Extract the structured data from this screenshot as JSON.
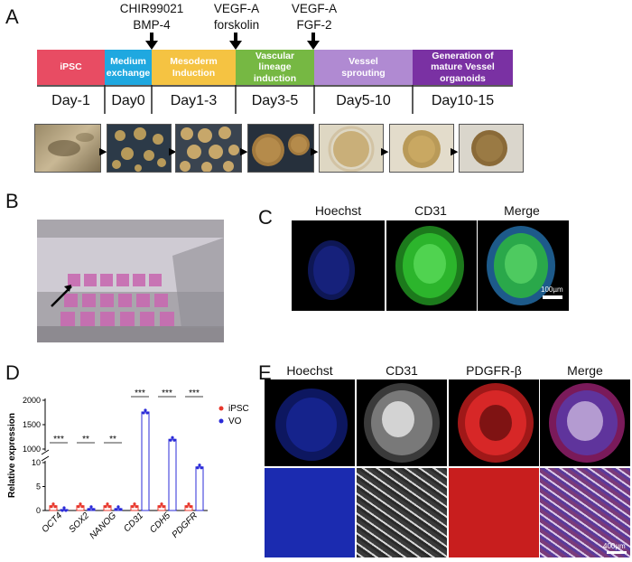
{
  "panel_a": {
    "letter": "A",
    "factors": [
      {
        "line1": "CHIR99021",
        "line2": "BMP-4"
      },
      {
        "line1": "VEGF-A",
        "line2": "forskolin"
      },
      {
        "line1": "VEGF-A",
        "line2": "FGF-2"
      }
    ],
    "stages": [
      {
        "label": "iPSC",
        "color": "#e84c63"
      },
      {
        "label": "Medium exchange",
        "color": "#1fa8e0"
      },
      {
        "label": "Mesoderm Induction",
        "color": "#f5c342"
      },
      {
        "label": "Vascular lineage induction",
        "color": "#76b843"
      },
      {
        "label": "Vessel sprouting",
        "color": "#b08ad2"
      },
      {
        "label": "Generation of mature Vessel organoids",
        "color": "#7a31a3"
      }
    ],
    "days": [
      "Day-1",
      "Day0",
      "Day1-3",
      "Day3-5",
      "Day5-10",
      "Day10-15"
    ]
  },
  "panel_b": {
    "letter": "B"
  },
  "panel_c": {
    "letter": "C",
    "headers": [
      "Hoechst",
      "CD31",
      "Merge"
    ],
    "scale_bar": "100µm"
  },
  "panel_d": {
    "letter": "D",
    "chart_data": {
      "type": "bar",
      "categories": [
        "OCT4",
        "SOX2",
        "NANOG",
        "CD31",
        "CDH5",
        "PDGFR"
      ],
      "ylabel": "Relative expression",
      "y_ticks_upper": [
        "2000",
        "1500",
        "1000"
      ],
      "y_ticks_lower": [
        "10",
        "5",
        "0"
      ],
      "axis_break": [
        10,
        1000
      ],
      "series": [
        {
          "name": "iPSC",
          "color": "#e8372c",
          "values": [
            1,
            1,
            1,
            1,
            1,
            1
          ]
        },
        {
          "name": "VO",
          "color": "#2b2bd8",
          "values": [
            0.2,
            0.4,
            0.4,
            1760,
            1200,
            9.1
          ]
        }
      ],
      "significance": [
        "***",
        "**",
        "**",
        "***",
        "***",
        "***"
      ]
    }
  },
  "panel_e": {
    "letter": "E",
    "headers": [
      "Hoechst",
      "CD31",
      "PDGFR-β",
      "Merge"
    ],
    "scale_bar": "400µm"
  }
}
